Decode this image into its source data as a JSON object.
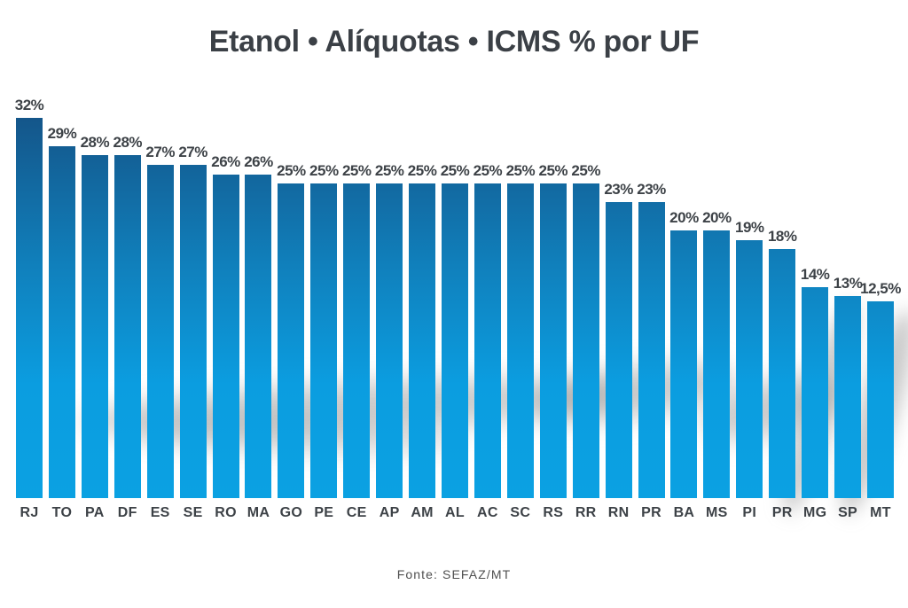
{
  "page": {
    "title": "Etanol • Alíquotas • ICMS % por UF",
    "source": "Fonte: SEFAZ/MT"
  },
  "colors": {
    "background": "#ffffff",
    "bar_gradient_top": "#14568a",
    "bar_gradient_mid": "#1080bc",
    "bar_gradient_bottom": "#0ba1e2",
    "title_text": "#3b4046",
    "label_text": "#3d4247",
    "source_text": "#4f4f4f"
  },
  "chart_data": {
    "type": "bar",
    "title": "Etanol • Alíquotas • ICMS % por UF",
    "xlabel": "",
    "ylabel": "",
    "ylim": [
      0,
      32
    ],
    "grid": false,
    "legend": null,
    "categories": [
      "RJ",
      "TO",
      "PA",
      "DF",
      "ES",
      "SE",
      "RO",
      "MA",
      "GO",
      "PE",
      "CE",
      "AP",
      "AM",
      "AL",
      "AC",
      "SC",
      "RS",
      "RR",
      "RN",
      "PR",
      "BA",
      "MS",
      "PI",
      "PR",
      "MG",
      "SP",
      "MT"
    ],
    "values": [
      32,
      29,
      28,
      28,
      27,
      27,
      26,
      26,
      25,
      25,
      25,
      25,
      25,
      25,
      25,
      25,
      25,
      25,
      23,
      23,
      20,
      20,
      19,
      18,
      14,
      13,
      12.5
    ],
    "value_labels": [
      "32%",
      "29%",
      "28%",
      "28%",
      "27%",
      "27%",
      "26%",
      "26%",
      "25%",
      "25%",
      "25%",
      "25%",
      "25%",
      "25%",
      "25%",
      "25%",
      "25%",
      "25%",
      "23%",
      "23%",
      "20%",
      "20%",
      "19%",
      "18%",
      "14%",
      "13%",
      "12,5%"
    ],
    "source": "Fonte: SEFAZ/MT"
  }
}
